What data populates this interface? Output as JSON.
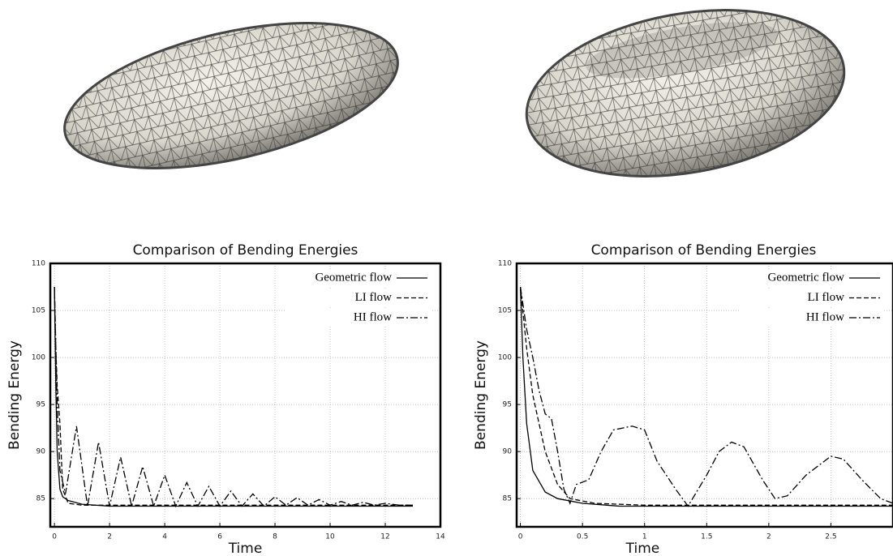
{
  "chart_data": [
    {
      "type": "line",
      "title": "Comparison of Bending Energies",
      "xlabel": "Time",
      "ylabel": "Bending Energy",
      "xlim": [
        -0.15,
        14
      ],
      "ylim": [
        82,
        110
      ],
      "xticks": [
        0,
        2,
        4,
        6,
        8,
        10,
        12,
        14
      ],
      "yticks": [
        85,
        90,
        95,
        100,
        105,
        110
      ],
      "grid": true,
      "legend": "upper right",
      "series": [
        {
          "name": "Geometric flow",
          "color": "#000000",
          "linestyle": "solid",
          "x": [
            0,
            0.05,
            0.1,
            0.2,
            0.3,
            0.5,
            1,
            2,
            4,
            8,
            13
          ],
          "values": [
            107.5,
            97,
            90,
            86,
            85.2,
            84.8,
            84.4,
            84.2,
            84.2,
            84.2,
            84.2
          ]
        },
        {
          "name": "LI flow",
          "color": "#000000",
          "linestyle": "dashed",
          "x": [
            0,
            0.05,
            0.1,
            0.2,
            0.3,
            0.5,
            1,
            2,
            5,
            13
          ],
          "values": [
            107.5,
            101,
            97,
            93,
            86,
            84.5,
            84.3,
            84.3,
            84.3,
            84.3
          ]
        },
        {
          "name": "HI flow",
          "color": "#000000",
          "linestyle": "dashdot",
          "x": [
            0,
            0.1,
            0.2,
            0.4,
            0.8,
            1.2,
            1.6,
            2.0,
            2.4,
            2.8,
            3.2,
            3.6,
            4.0,
            4.4,
            4.8,
            5.2,
            5.6,
            6.0,
            6.4,
            6.8,
            7.2,
            7.6,
            8.0,
            8.4,
            8.8,
            9.2,
            9.6,
            10.0,
            10.4,
            10.8,
            11.2,
            11.6,
            12,
            12.5,
            13
          ],
          "values": [
            107.5,
            95,
            88,
            85.5,
            92.7,
            84.2,
            91,
            84.2,
            89.4,
            84.2,
            88.4,
            84.2,
            87.5,
            84.2,
            86.7,
            84.2,
            86.3,
            84.2,
            85.8,
            84.2,
            85.5,
            84.2,
            85.2,
            84.3,
            85.1,
            84.3,
            84.9,
            84.3,
            84.7,
            84.3,
            84.6,
            84.3,
            84.5,
            84.3,
            84.3
          ]
        }
      ]
    },
    {
      "type": "line",
      "title": "Comparison of Bending Energies",
      "xlabel": "Time",
      "ylabel": "Bending Energy",
      "xlim": [
        -0.03,
        3
      ],
      "ylim": [
        82,
        110
      ],
      "xticks": [
        0,
        0.5,
        1,
        1.5,
        2,
        2.5
      ],
      "yticks": [
        85,
        90,
        95,
        100,
        105,
        110
      ],
      "grid": true,
      "legend": "upper right",
      "series": [
        {
          "name": "Geometric flow",
          "color": "#000000",
          "linestyle": "solid",
          "x": [
            0,
            0.02,
            0.05,
            0.1,
            0.2,
            0.3,
            0.5,
            0.8,
            1.5,
            3
          ],
          "values": [
            107.5,
            100,
            93,
            88,
            85.7,
            85,
            84.5,
            84.2,
            84.2,
            84.2
          ]
        },
        {
          "name": "LI flow",
          "color": "#000000",
          "linestyle": "dashed",
          "x": [
            0,
            0.05,
            0.1,
            0.2,
            0.3,
            0.4,
            0.6,
            1,
            2,
            3
          ],
          "values": [
            107.5,
            101,
            96,
            90,
            86.5,
            85,
            84.5,
            84.3,
            84.3,
            84.3
          ]
        },
        {
          "name": "HI flow",
          "color": "#000000",
          "linestyle": "dashdot",
          "x": [
            0,
            0.05,
            0.1,
            0.15,
            0.2,
            0.25,
            0.3,
            0.35,
            0.4,
            0.45,
            0.55,
            0.65,
            0.75,
            0.9,
            1.0,
            1.1,
            1.25,
            1.35,
            1.5,
            1.6,
            1.7,
            1.8,
            1.95,
            2.05,
            2.15,
            2.3,
            2.5,
            2.6,
            2.75,
            2.9,
            3.0
          ],
          "values": [
            107.5,
            103,
            100,
            96.5,
            94,
            93.5,
            90,
            86,
            84.5,
            86.5,
            87,
            90,
            92.3,
            92.7,
            92.3,
            89,
            86,
            84.2,
            87.5,
            90,
            91,
            90.5,
            87,
            85,
            85.3,
            87.5,
            89.5,
            89.2,
            87,
            85,
            84.5
          ]
        }
      ]
    }
  ]
}
